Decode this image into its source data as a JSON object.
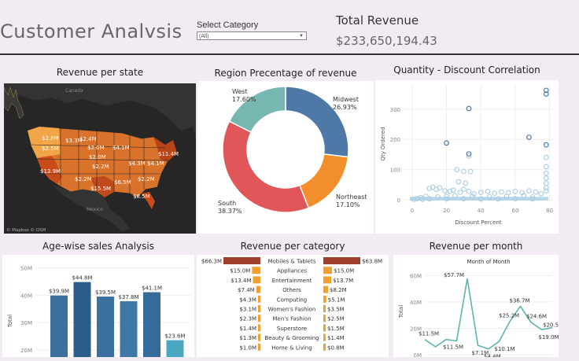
{
  "header": {
    "title": "Customer Analvsis",
    "select_label": "Select Category",
    "select_value": "(All)",
    "total_revenue_label": "Total Revenue",
    "total_revenue_value": "$233,650,194.43"
  },
  "colors": {
    "map_bg": "#262626",
    "blue1": "#4e79a7",
    "orange": "#f28e2b",
    "red": "#e15759",
    "teal": "#76b7b2",
    "light_blue": "#a8cce4",
    "bar_dark": "#2b5d8a",
    "bar_light": "#4aa7c0",
    "cat_left": "#a0402c",
    "cat_right": "#f0a030"
  },
  "state_map": {
    "title": "Revenue per state",
    "labels": [
      "$2.8M",
      "$3.3M",
      "$2.4M",
      "$2.5M",
      "$2.0M",
      "$4.1M",
      "$11.4M",
      "$2.0M",
      "$13.9M",
      "$4.3M",
      "$4.1M",
      "$2.2M",
      "$2.2M",
      "$15.5M",
      "$6.5M",
      "$8.5M",
      "$2.2M"
    ],
    "place_names": [
      "Canada",
      "Mexico"
    ],
    "attribution": "© Mapbox © OSM"
  },
  "region_chart": {
    "title": "Region Precentage of revenue",
    "chart_data": {
      "type": "pie",
      "slices": [
        {
          "name": "Midwest",
          "value": 26.93,
          "label": "26.93%"
        },
        {
          "name": "Northeast",
          "value": 17.1,
          "label": "17.10%"
        },
        {
          "name": "South",
          "value": 38.37,
          "label": "38.37%"
        },
        {
          "name": "West",
          "value": 17.6,
          "label": "17.60%"
        }
      ]
    }
  },
  "scatter_chart": {
    "title": "Quantity - Discount Correlation",
    "chart_data": {
      "type": "scatter",
      "xlabel": "Discount Percent",
      "ylabel": "Qty Ordered",
      "xlim": [
        -5,
        82
      ],
      "ylim": [
        -10,
        380
      ],
      "xticks": [
        0,
        20,
        40,
        60,
        80
      ],
      "yticks": [
        0,
        100,
        200,
        300
      ],
      "points": [
        [
          33,
          302
        ],
        [
          20,
          188
        ],
        [
          33,
          152
        ],
        [
          33,
          145
        ],
        [
          68,
          207
        ],
        [
          78,
          362
        ],
        [
          78,
          350
        ],
        [
          78,
          182
        ],
        [
          78,
          140
        ],
        [
          78,
          110
        ],
        [
          78,
          88
        ],
        [
          78,
          72
        ],
        [
          78,
          55
        ],
        [
          78,
          40
        ],
        [
          78,
          30
        ],
        [
          26,
          100
        ],
        [
          30,
          94
        ],
        [
          34,
          94
        ],
        [
          27,
          60
        ],
        [
          31,
          55
        ],
        [
          10,
          38
        ],
        [
          12,
          42
        ],
        [
          14,
          35
        ],
        [
          16,
          40
        ],
        [
          19,
          30
        ],
        [
          22,
          28
        ],
        [
          24,
          32
        ],
        [
          28,
          25
        ],
        [
          30,
          35
        ],
        [
          33,
          28
        ],
        [
          36,
          20
        ],
        [
          40,
          25
        ],
        [
          44,
          28
        ],
        [
          48,
          22
        ],
        [
          52,
          26
        ],
        [
          56,
          24
        ],
        [
          60,
          28
        ],
        [
          64,
          24
        ],
        [
          68,
          30
        ],
        [
          72,
          26
        ],
        [
          75,
          20
        ],
        [
          5,
          8
        ],
        [
          8,
          12
        ],
        [
          15,
          10
        ],
        [
          20,
          12
        ],
        [
          25,
          14
        ],
        [
          35,
          12
        ],
        [
          45,
          10
        ],
        [
          55,
          12
        ],
        [
          65,
          14
        ],
        [
          70,
          10
        ],
        [
          10,
          3
        ],
        [
          20,
          3
        ],
        [
          30,
          4
        ],
        [
          40,
          3
        ],
        [
          50,
          3
        ],
        [
          60,
          4
        ],
        [
          70,
          3
        ],
        [
          1,
          2
        ],
        [
          3,
          4
        ],
        [
          6,
          2
        ]
      ]
    }
  },
  "age_chart": {
    "title": "Age-wise sales Analysis",
    "chart_data": {
      "type": "bar",
      "ylabel": "Total",
      "ylim": [
        10,
        53
      ],
      "yticks": [
        20,
        30,
        40,
        50
      ],
      "ytick_labels": [
        "20M",
        "30M",
        "40M",
        "50M"
      ],
      "values": [
        39.9,
        44.8,
        39.5,
        37.8,
        41.1,
        23.6
      ],
      "value_labels": [
        "$39.9M",
        "$44.8M",
        "$39.5M",
        "$37.8M",
        "$41.1M",
        "$23.6M"
      ]
    }
  },
  "category_chart": {
    "title": "Revenue per category",
    "chart_data": {
      "type": "bar",
      "categories": [
        "Mobiles & Tablets",
        "Appliances",
        "Entertainment",
        "Others",
        "Computing",
        "Women's Fashion",
        "Men's Fashion",
        "Superstore",
        "Beauty & Grooming",
        "Home & Living"
      ],
      "series": [
        {
          "values": [
            66.3,
            15.0,
            13.4,
            7.4,
            4.3,
            3.1,
            2.3,
            1.4,
            1.3,
            1.0
          ],
          "labels": [
            "$66.3M",
            "$15.0M",
            "$13.4M",
            "$7.4M",
            "$4.3M",
            "$3.1M",
            "$2.3M",
            "$1.4M",
            "$1.3M",
            "$1.0M"
          ]
        },
        {
          "values": [
            63.8,
            15.0,
            13.7,
            8.2,
            5.1,
            3.5,
            2.5,
            1.5,
            1.4,
            0.8
          ],
          "labels": [
            "$63.8M",
            "$15.0M",
            "$13.7M",
            "$8.2M",
            "$5.1M",
            "$3.5M",
            "$2.5M",
            "$1.5M",
            "$1.4M",
            "$0.8M"
          ]
        }
      ]
    }
  },
  "month_chart": {
    "title": "Revenue per month",
    "chart_data": {
      "type": "line",
      "subtitle": "Month of Month",
      "ylabel": "Total",
      "ylim": [
        0,
        65
      ],
      "yticks": [
        0,
        20,
        40,
        60
      ],
      "ytick_labels": [
        "0M",
        "20M",
        "40M",
        "60M"
      ],
      "values": [
        11.5,
        6.0,
        11.5,
        10.5,
        57.7,
        7.1,
        4.4,
        10.1,
        25.2,
        36.7,
        24.6,
        19.0,
        20.5
      ],
      "point_labels": [
        {
          "i": 0,
          "text": "$11.5M",
          "dx": -8,
          "dy": -5
        },
        {
          "i": 2,
          "text": "$11.5M",
          "dx": -4,
          "dy": 12
        },
        {
          "i": 4,
          "text": "$57.7M",
          "dx": -30,
          "dy": -2
        },
        {
          "i": 5,
          "text": "$7.1M",
          "dx": -8,
          "dy": 12
        },
        {
          "i": 6,
          "text": "$4.4M",
          "dx": -6,
          "dy": 12
        },
        {
          "i": 7,
          "text": "$10.1M",
          "dx": -6,
          "dy": 12
        },
        {
          "i": 8,
          "text": "$25.2M",
          "dx": -14,
          "dy": -5
        },
        {
          "i": 9,
          "text": "$36.7M",
          "dx": -14,
          "dy": -5
        },
        {
          "i": 10,
          "text": "$24.6M",
          "dx": -6,
          "dy": -5
        },
        {
          "i": 11,
          "text": "$19.0M",
          "dx": -4,
          "dy": 12
        },
        {
          "i": 12,
          "text": "$20.5M",
          "dx": -12,
          "dy": -1
        }
      ]
    }
  }
}
